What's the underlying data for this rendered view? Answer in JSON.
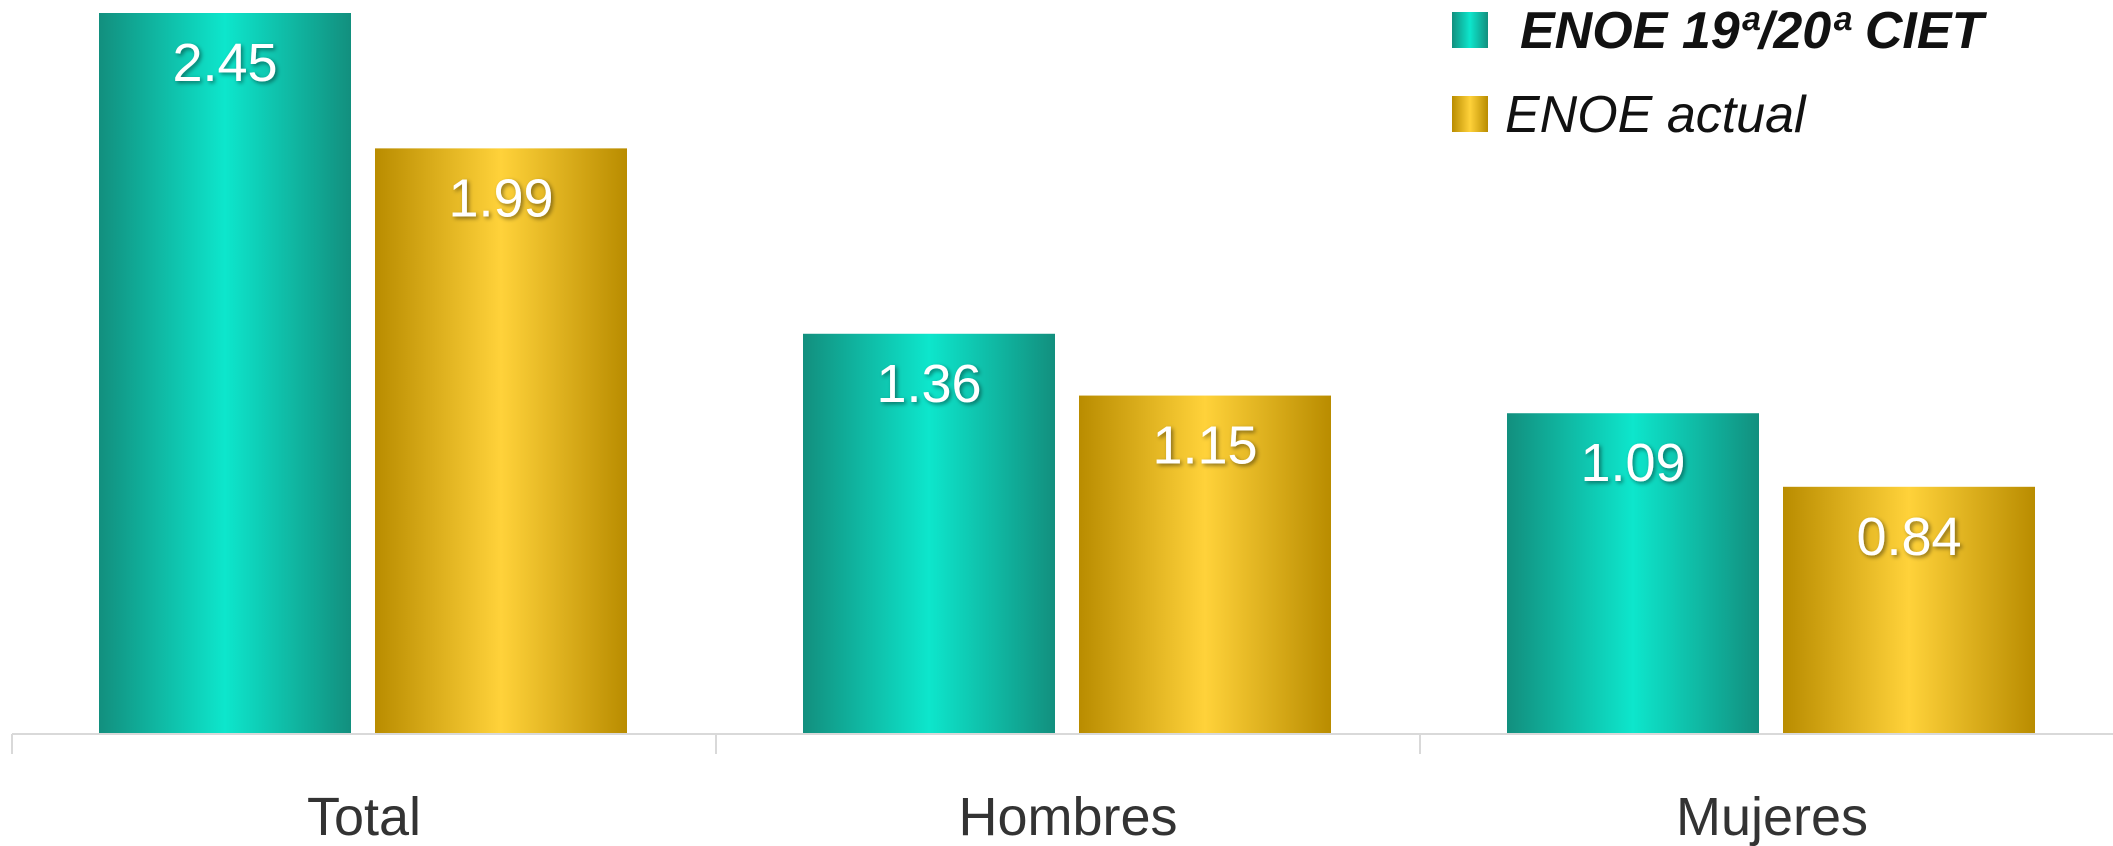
{
  "chart_data": {
    "type": "bar",
    "categories": [
      "Total",
      "Hombres",
      "Mujeres"
    ],
    "series": [
      {
        "name": "ENOE 19ª/20ª CIET",
        "values": [
          2.45,
          1.36,
          1.09
        ],
        "color": "#1ea08e",
        "legend_bold": true
      },
      {
        "name": "ENOE actual",
        "values": [
          1.99,
          1.15,
          0.84
        ],
        "color": "#e0a800",
        "legend_bold": false
      }
    ],
    "data_labels": {
      "series_0": [
        "2.45",
        "1.36",
        "1.09"
      ],
      "series_1": [
        "1.99",
        "1.15",
        "0.84"
      ]
    },
    "ylim": [
      0,
      2.45
    ],
    "grid": false,
    "legend_position": "top-right",
    "title": "",
    "xlabel": "",
    "ylabel": ""
  }
}
